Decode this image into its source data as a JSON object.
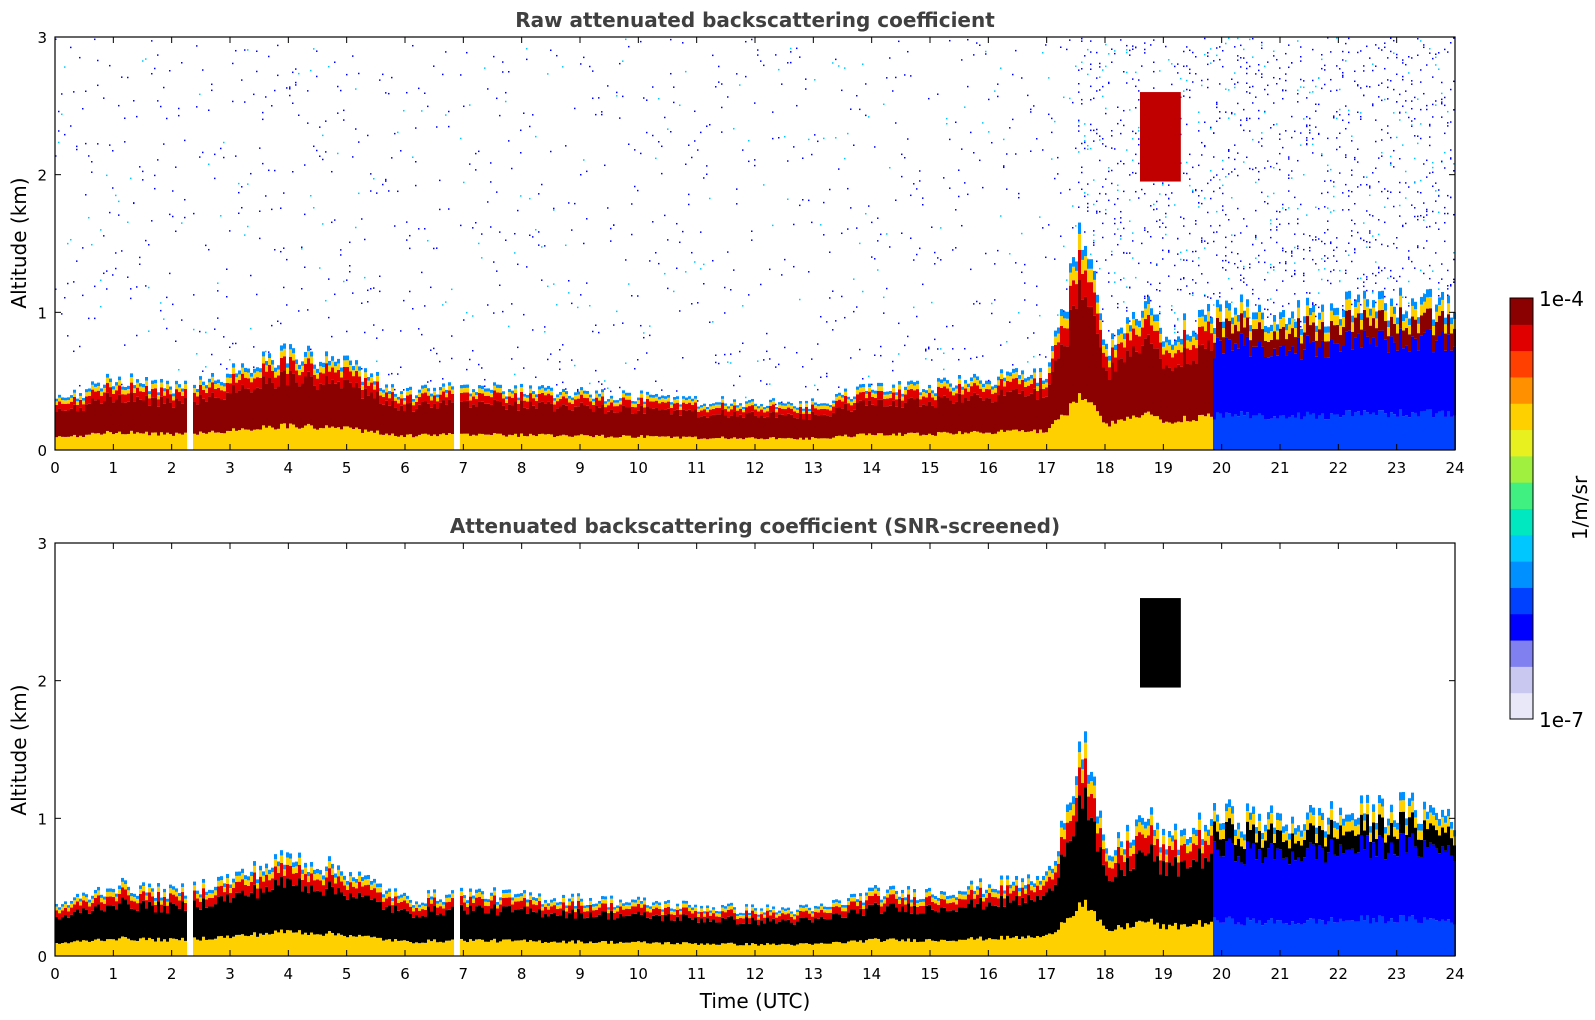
{
  "chart_data": [
    {
      "type": "heatmap",
      "title": "Raw attenuated backscattering coefficient",
      "xlabel": "",
      "ylabel": "Altitude (km)",
      "xlim": [
        0,
        24
      ],
      "ylim": [
        0,
        3
      ],
      "xticks": [
        0,
        1,
        2,
        3,
        4,
        5,
        6,
        7,
        8,
        9,
        10,
        11,
        12,
        13,
        14,
        15,
        16,
        17,
        18,
        19,
        20,
        21,
        22,
        23,
        24
      ],
      "yticks": [
        0,
        1,
        2,
        3
      ],
      "colorbar": {
        "label": "1/m/sr",
        "min_label": "1e-7",
        "max_label": "1e-4",
        "scale": "log"
      },
      "features": {
        "boundary_layer_top_km": [
          {
            "t": 0,
            "h": 0.35
          },
          {
            "t": 1,
            "h": 0.5
          },
          {
            "t": 2,
            "h": 0.45
          },
          {
            "t": 3,
            "h": 0.55
          },
          {
            "t": 4,
            "h": 0.7
          },
          {
            "t": 5,
            "h": 0.6
          },
          {
            "t": 6,
            "h": 0.4
          },
          {
            "t": 7,
            "h": 0.45
          },
          {
            "t": 8,
            "h": 0.42
          },
          {
            "t": 9,
            "h": 0.4
          },
          {
            "t": 10,
            "h": 0.38
          },
          {
            "t": 11,
            "h": 0.35
          },
          {
            "t": 12,
            "h": 0.33
          },
          {
            "t": 13,
            "h": 0.33
          },
          {
            "t": 14,
            "h": 0.45
          },
          {
            "t": 15,
            "h": 0.45
          },
          {
            "t": 16,
            "h": 0.5
          },
          {
            "t": 17,
            "h": 0.55
          },
          {
            "t": 17.6,
            "h": 1.55
          },
          {
            "t": 18,
            "h": 0.7
          },
          {
            "t": 18.7,
            "h": 1.0
          },
          {
            "t": 19,
            "h": 0.8
          },
          {
            "t": 20,
            "h": 1.0
          },
          {
            "t": 21,
            "h": 0.95
          },
          {
            "t": 22,
            "h": 1.0
          },
          {
            "t": 23,
            "h": 1.05
          },
          {
            "t": 24,
            "h": 1.0
          }
        ],
        "elevated_cloud": {
          "t_start": 18.6,
          "t_end": 19.3,
          "h_bottom": 1.95,
          "h_top": 2.6
        },
        "data_gaps_hours": [
          2.3,
          6.85
        ]
      }
    },
    {
      "type": "heatmap",
      "title": "Attenuated backscattering coefficient (SNR-screened)",
      "xlabel": "Time (UTC)",
      "ylabel": "Altitude (km)",
      "xlim": [
        0,
        24
      ],
      "ylim": [
        0,
        3
      ],
      "xticks": [
        0,
        1,
        2,
        3,
        4,
        5,
        6,
        7,
        8,
        9,
        10,
        11,
        12,
        13,
        14,
        15,
        16,
        17,
        18,
        19,
        20,
        21,
        22,
        23,
        24
      ],
      "yticks": [
        0,
        1,
        2,
        3
      ],
      "colorbar": {
        "label": "1/m/sr",
        "min_label": "1e-7",
        "max_label": "1e-4",
        "scale": "log"
      },
      "features": {
        "screened": true,
        "saturated_color": "#000000"
      }
    }
  ],
  "colormap": [
    "#e8e8f8",
    "#c8c8f0",
    "#8080f0",
    "#0000ff",
    "#0040ff",
    "#0090ff",
    "#00c8ff",
    "#00e8c0",
    "#40f080",
    "#a0f040",
    "#e8f020",
    "#ffd000",
    "#ff9000",
    "#ff4000",
    "#e00000",
    "#8b0000"
  ]
}
